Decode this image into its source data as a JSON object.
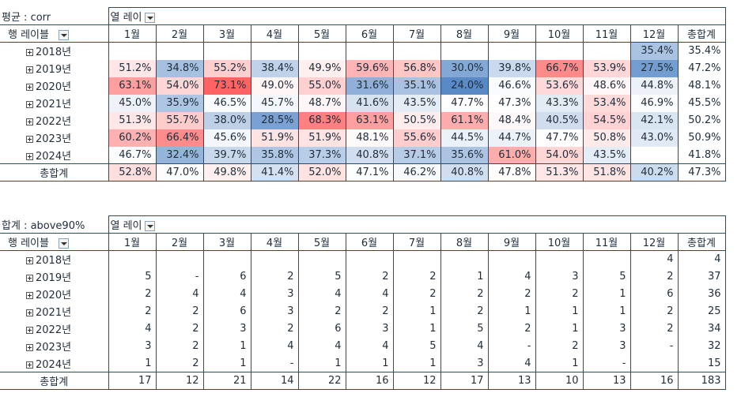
{
  "pivot1": {
    "filter_label": "평균 : corr",
    "col_label": "열 레이",
    "row_label": "행 레이블",
    "months": [
      "1월",
      "2월",
      "3월",
      "4월",
      "5월",
      "6월",
      "7월",
      "8월",
      "9월",
      "10월",
      "11월",
      "12월",
      "총합계"
    ],
    "rows": [
      {
        "label": "2018년",
        "cells": [
          "",
          "",
          "",
          "",
          "",
          "",
          "",
          "",
          "",
          "",
          "",
          "35.4%",
          "35.4%"
        ]
      },
      {
        "label": "2019년",
        "cells": [
          "51.2%",
          "34.8%",
          "55.2%",
          "38.4%",
          "49.9%",
          "59.6%",
          "56.8%",
          "30.0%",
          "39.8%",
          "66.7%",
          "53.9%",
          "27.5%",
          "47.2%"
        ]
      },
      {
        "label": "2020년",
        "cells": [
          "63.1%",
          "54.0%",
          "73.1%",
          "49.0%",
          "55.0%",
          "31.6%",
          "35.1%",
          "24.0%",
          "46.6%",
          "53.6%",
          "48.6%",
          "44.8%",
          "48.1%"
        ]
      },
      {
        "label": "2021년",
        "cells": [
          "45.0%",
          "35.9%",
          "46.5%",
          "45.7%",
          "48.7%",
          "41.6%",
          "43.5%",
          "47.7%",
          "47.3%",
          "43.3%",
          "53.4%",
          "46.9%",
          "45.5%"
        ]
      },
      {
        "label": "2022년",
        "cells": [
          "51.3%",
          "55.7%",
          "38.0%",
          "28.5%",
          "68.3%",
          "63.1%",
          "50.5%",
          "61.1%",
          "48.4%",
          "40.5%",
          "54.5%",
          "42.1%",
          "50.2%"
        ]
      },
      {
        "label": "2023년",
        "cells": [
          "60.2%",
          "66.4%",
          "45.6%",
          "51.9%",
          "51.9%",
          "48.1%",
          "55.6%",
          "44.5%",
          "44.7%",
          "47.7%",
          "50.8%",
          "43.0%",
          "50.9%"
        ]
      },
      {
        "label": "2024년",
        "cells": [
          "46.7%",
          "32.4%",
          "39.7%",
          "35.8%",
          "37.3%",
          "40.8%",
          "37.1%",
          "35.6%",
          "61.0%",
          "54.0%",
          "43.5%",
          "",
          "41.8%"
        ]
      }
    ],
    "total": {
      "label": "총합계",
      "cells": [
        "52.8%",
        "47.0%",
        "49.8%",
        "41.4%",
        "52.0%",
        "47.1%",
        "46.2%",
        "40.8%",
        "47.8%",
        "51.3%",
        "51.8%",
        "40.2%",
        "47.3%"
      ]
    }
  },
  "pivot2": {
    "filter_label": "합계 : above90%",
    "col_label": "열 레이",
    "row_label": "행 레이블",
    "months": [
      "1월",
      "2월",
      "3월",
      "4월",
      "5월",
      "6월",
      "7월",
      "8월",
      "9월",
      "10월",
      "11월",
      "12월",
      "총합계"
    ],
    "rows": [
      {
        "label": "2018년",
        "cells": [
          "",
          "",
          "",
          "",
          "",
          "",
          "",
          "",
          "",
          "",
          "",
          "4",
          "4"
        ]
      },
      {
        "label": "2019년",
        "cells": [
          "5",
          "-",
          "6",
          "2",
          "5",
          "2",
          "2",
          "1",
          "4",
          "3",
          "5",
          "2",
          "37"
        ]
      },
      {
        "label": "2020년",
        "cells": [
          "2",
          "4",
          "4",
          "3",
          "4",
          "4",
          "2",
          "2",
          "2",
          "2",
          "1",
          "6",
          "36"
        ]
      },
      {
        "label": "2021년",
        "cells": [
          "2",
          "2",
          "6",
          "3",
          "2",
          "2",
          "1",
          "2",
          "1",
          "1",
          "1",
          "2",
          "25"
        ]
      },
      {
        "label": "2022년",
        "cells": [
          "4",
          "2",
          "3",
          "2",
          "6",
          "3",
          "1",
          "5",
          "2",
          "1",
          "3",
          "2",
          "34"
        ]
      },
      {
        "label": "2023년",
        "cells": [
          "3",
          "2",
          "1",
          "4",
          "4",
          "4",
          "5",
          "4",
          "-",
          "2",
          "3",
          "-",
          "32"
        ]
      },
      {
        "label": "2024년",
        "cells": [
          "1",
          "2",
          "1",
          "-",
          "1",
          "1",
          "1",
          "3",
          "4",
          "1",
          "-",
          "",
          "15"
        ]
      }
    ],
    "total": {
      "label": "총합계",
      "cells": [
        "17",
        "12",
        "21",
        "14",
        "22",
        "16",
        "12",
        "17",
        "13",
        "10",
        "13",
        "16",
        "183"
      ]
    }
  }
}
